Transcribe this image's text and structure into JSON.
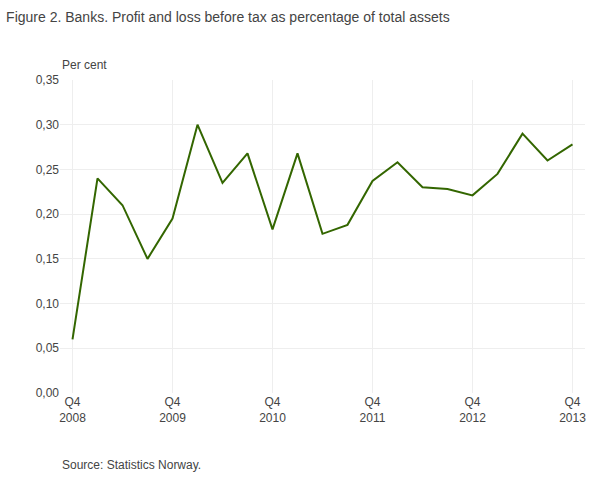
{
  "chart_data": {
    "type": "line",
    "title": "Figure 2. Banks. Profit and loss before tax as percentage of total assets",
    "ylabel": "Per cent",
    "annotations": [
      "Source: Statistics Norway."
    ],
    "categories": [
      "Q4\n2008",
      null,
      null,
      null,
      "Q4\n2009",
      null,
      null,
      null,
      "Q4\n2010",
      null,
      null,
      null,
      "Q4\n2011",
      null,
      null,
      null,
      "Q4\n2012",
      null,
      null,
      null,
      "Q4\n2013"
    ],
    "values": [
      0.06,
      0.24,
      0.21,
      0.15,
      0.195,
      0.3,
      0.235,
      0.268,
      0.183,
      0.268,
      0.178,
      0.188,
      0.237,
      0.258,
      0.23,
      0.228,
      0.221,
      0.245,
      0.29,
      0.26,
      0.278
    ],
    "color": "#336600",
    "ylim": [
      0.0,
      0.35
    ],
    "yticks": [
      {
        "value": 0.0,
        "label": "0,00"
      },
      {
        "value": 0.05,
        "label": "0,05"
      },
      {
        "value": 0.1,
        "label": "0,10"
      },
      {
        "value": 0.15,
        "label": "0,15"
      },
      {
        "value": 0.2,
        "label": "0,20"
      },
      {
        "value": 0.25,
        "label": "0,25"
      },
      {
        "value": 0.3,
        "label": "0,30"
      },
      {
        "value": 0.35,
        "label": "0,35"
      }
    ],
    "grid": true
  }
}
